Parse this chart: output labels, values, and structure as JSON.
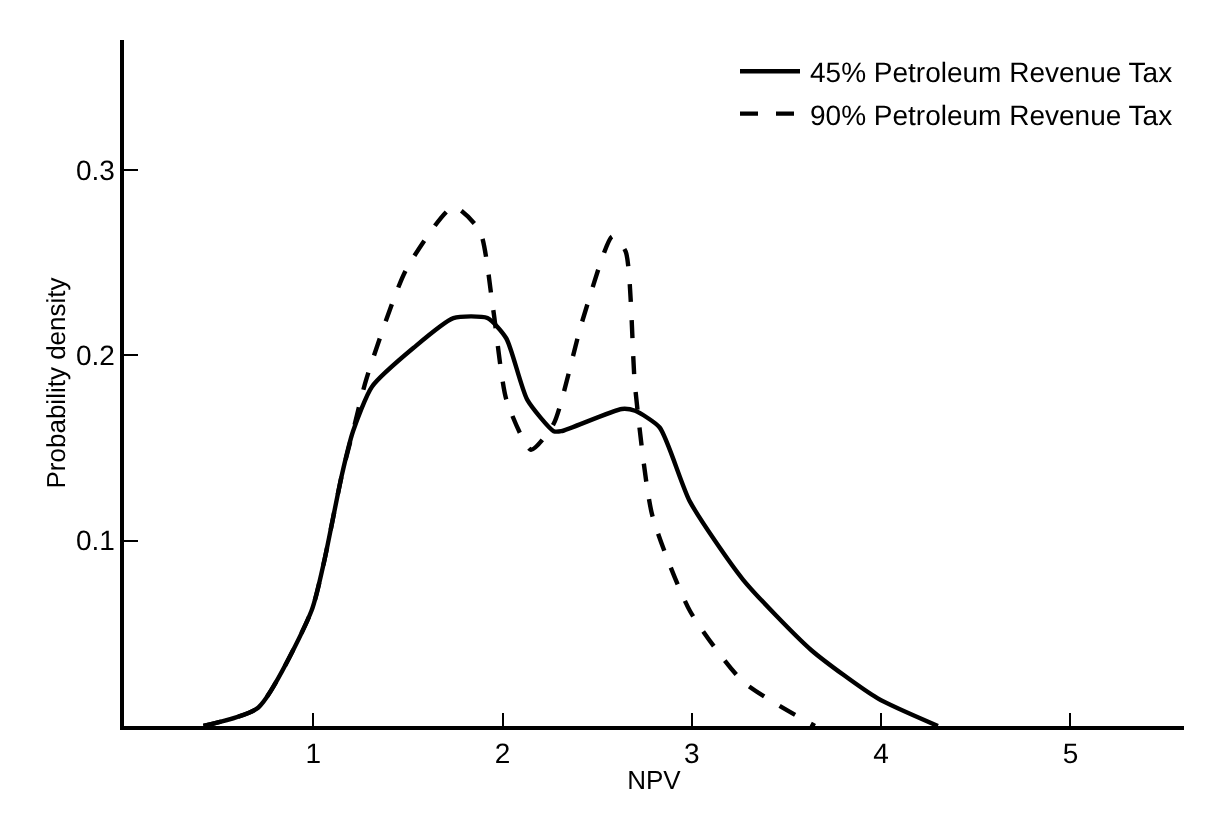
{
  "chart_data": {
    "type": "line",
    "xlabel": "NPV",
    "ylabel": "Probability density",
    "xlim": [
      0,
      5.6
    ],
    "ylim": [
      0,
      0.37
    ],
    "xticks": [
      1,
      2,
      3,
      4,
      5
    ],
    "yticks": [
      0.1,
      0.2,
      0.3
    ],
    "legend": "top right",
    "marker": "none",
    "series": [
      {
        "name": "45% Petroleum Revenue Tax",
        "color": "#000000",
        "line_style": "solid",
        "x": [
          0.42,
          0.71,
          0.99,
          1.06,
          1.15,
          1.21,
          1.31,
          1.53,
          1.74,
          1.92,
          2.02,
          2.13,
          2.27,
          2.31,
          2.63,
          2.7,
          2.83,
          2.99,
          3.27,
          3.63,
          3.98,
          4.3
        ],
        "values": [
          0,
          0.01,
          0.062,
          0.09,
          0.135,
          0.159,
          0.183,
          0.204,
          0.22,
          0.22,
          0.209,
          0.176,
          0.159,
          0.159,
          0.171,
          0.17,
          0.161,
          0.121,
          0.079,
          0.041,
          0.015,
          0
        ]
      },
      {
        "name": "90% Petroleum Revenue Tax",
        "color": "#000000",
        "line_style": "dashed",
        "x": [
          0.42,
          0.71,
          0.99,
          1.06,
          1.15,
          1.21,
          1.28,
          1.49,
          1.74,
          1.88,
          1.95,
          2.02,
          2.15,
          2.27,
          2.42,
          2.58,
          2.65,
          2.7,
          2.79,
          2.99,
          3.27,
          3.65
        ],
        "values": [
          0,
          0.01,
          0.062,
          0.09,
          0.135,
          0.159,
          0.187,
          0.246,
          0.28,
          0.267,
          0.225,
          0.176,
          0.149,
          0.163,
          0.218,
          0.264,
          0.256,
          0.183,
          0.114,
          0.062,
          0.024,
          0
        ]
      }
    ]
  }
}
